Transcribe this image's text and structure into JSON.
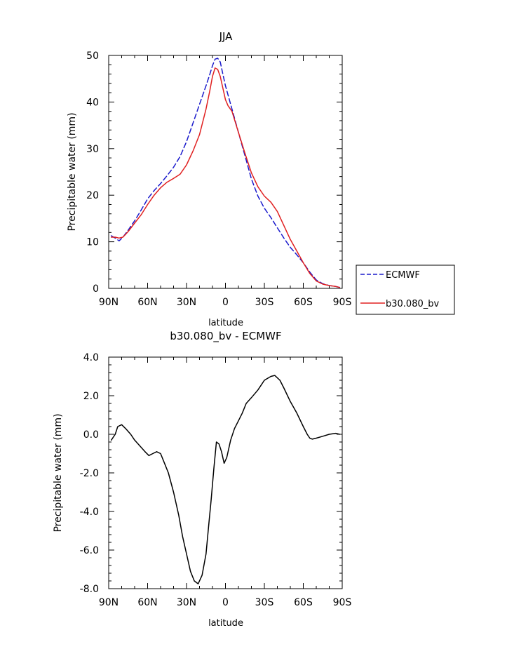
{
  "chart_data": [
    {
      "type": "line",
      "title": "JJA",
      "xlabel": "latitude",
      "ylabel": "Precipitable water (mm)",
      "xlim": [
        -90,
        90
      ],
      "ylim": [
        0,
        50
      ],
      "x_ticks": [
        -90,
        -60,
        -30,
        0,
        30,
        60,
        90
      ],
      "x_tick_labels": [
        "90N",
        "60N",
        "30N",
        "0",
        "30S",
        "60S",
        "90S"
      ],
      "y_ticks": [
        0,
        10,
        20,
        30,
        40,
        50
      ],
      "y_tick_labels": [
        "0",
        "10",
        "20",
        "30",
        "40",
        "50"
      ],
      "legend_position": "right",
      "series": [
        {
          "name": "ECMWF",
          "color": "#1a1acc",
          "dash": "dashed",
          "x": [
            -88,
            -85,
            -82,
            -79,
            -75,
            -70,
            -65,
            -60,
            -55,
            -50,
            -45,
            -40,
            -35,
            -30,
            -25,
            -20,
            -15,
            -12,
            -10,
            -8,
            -6,
            -4,
            -2,
            0,
            2,
            5,
            10,
            15,
            20,
            25,
            30,
            35,
            40,
            45,
            50,
            55,
            60,
            65,
            70,
            75,
            80,
            85,
            88
          ],
          "y": [
            11.3,
            10.8,
            10.2,
            11.0,
            12.5,
            14.5,
            16.8,
            19.2,
            21.0,
            22.5,
            24.2,
            26.0,
            28.3,
            31.5,
            35.5,
            39.5,
            43.5,
            46.0,
            47.8,
            49.2,
            49.4,
            48.6,
            46.0,
            43.5,
            41.5,
            38.5,
            33.5,
            28.5,
            23.5,
            19.8,
            17.2,
            15.2,
            13.0,
            10.8,
            8.8,
            7.2,
            5.5,
            3.5,
            1.8,
            1.0,
            0.6,
            0.4,
            0.2
          ]
        },
        {
          "name": "b30.080_bv",
          "color": "#e02020",
          "dash": "solid",
          "x": [
            -88,
            -85,
            -82,
            -79,
            -75,
            -70,
            -65,
            -60,
            -55,
            -50,
            -45,
            -40,
            -35,
            -30,
            -25,
            -20,
            -15,
            -12,
            -10,
            -8,
            -6,
            -4,
            -2,
            0,
            2,
            5,
            10,
            15,
            20,
            25,
            30,
            35,
            40,
            45,
            50,
            55,
            60,
            65,
            70,
            75,
            80,
            85,
            88
          ],
          "y": [
            11.0,
            11.0,
            10.8,
            11.0,
            12.2,
            14.0,
            15.8,
            18.0,
            20.0,
            21.6,
            22.8,
            23.6,
            24.5,
            26.5,
            29.5,
            33.0,
            38.5,
            42.5,
            45.5,
            47.3,
            47.0,
            45.5,
            43.0,
            40.5,
            39.2,
            38.0,
            33.5,
            29.0,
            24.8,
            21.8,
            19.8,
            18.5,
            16.5,
            13.5,
            10.5,
            8.0,
            5.5,
            3.2,
            1.6,
            0.9,
            0.6,
            0.4,
            0.2
          ]
        }
      ]
    },
    {
      "type": "line",
      "title": "b30.080_bv - ECMWF",
      "xlabel": "latitude",
      "ylabel": "Precipitable water (mm)",
      "xlim": [
        -90,
        90
      ],
      "ylim": [
        -8,
        4
      ],
      "x_ticks": [
        -90,
        -60,
        -30,
        0,
        30,
        60,
        90
      ],
      "x_tick_labels": [
        "90N",
        "60N",
        "30N",
        "0",
        "30S",
        "60S",
        "90S"
      ],
      "y_ticks": [
        -8,
        -6,
        -4,
        -2,
        0,
        2,
        4
      ],
      "y_tick_labels": [
        "-8.0",
        "-6.0",
        "-4.0",
        "-2.0",
        "0.0",
        "2.0",
        "4.0"
      ],
      "series": [
        {
          "color": "#000000",
          "dash": "solid",
          "x": [
            -88,
            -85,
            -83,
            -80,
            -77,
            -73,
            -70,
            -66,
            -62,
            -59,
            -56,
            -53,
            -50,
            -47,
            -44,
            -40,
            -36,
            -33,
            -30,
            -27,
            -24,
            -21,
            -18,
            -15,
            -13,
            -11,
            -9,
            -7,
            -5,
            -3,
            -1,
            1,
            4,
            7,
            10,
            13,
            16,
            20,
            25,
            30,
            35,
            38,
            42,
            45,
            50,
            55,
            60,
            63,
            65,
            67,
            70,
            75,
            80,
            85,
            88
          ],
          "y": [
            -0.3,
            0.0,
            0.4,
            0.5,
            0.3,
            0.0,
            -0.3,
            -0.6,
            -0.9,
            -1.1,
            -1.0,
            -0.9,
            -1.0,
            -1.5,
            -2.0,
            -3.0,
            -4.2,
            -5.3,
            -6.2,
            -7.1,
            -7.6,
            -7.75,
            -7.3,
            -6.2,
            -4.8,
            -3.4,
            -1.8,
            -0.4,
            -0.5,
            -0.9,
            -1.5,
            -1.2,
            -0.3,
            0.3,
            0.7,
            1.1,
            1.6,
            1.9,
            2.3,
            2.8,
            3.0,
            3.05,
            2.8,
            2.4,
            1.7,
            1.1,
            0.4,
            0.0,
            -0.2,
            -0.25,
            -0.2,
            -0.1,
            0.0,
            0.05,
            0.0
          ]
        }
      ]
    }
  ]
}
